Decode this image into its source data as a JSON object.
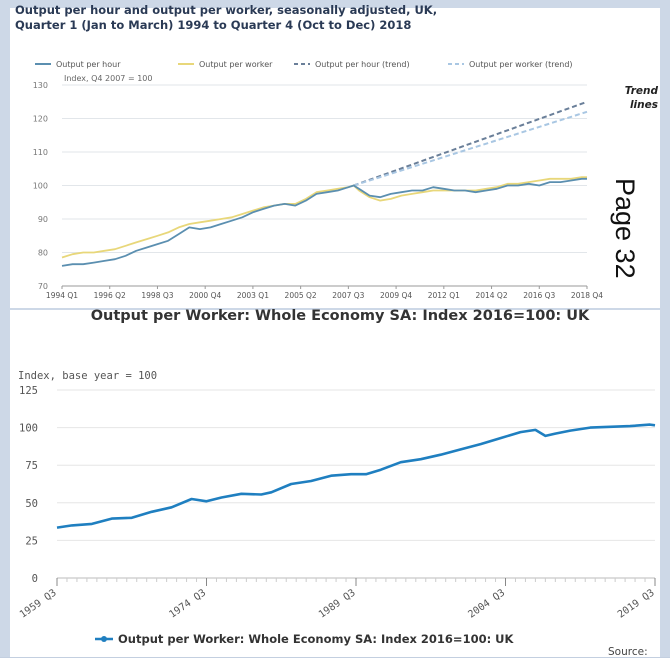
{
  "chart_data": [
    {
      "type": "line",
      "title": "Output per hour and output per worker, seasonally adjusted, UK, Quarter 1 (Jan to March) 1994 to Quarter 4 (Oct to Dec) 2018",
      "ylabel": "Index, Q4 2007 = 100",
      "ylim": [
        70,
        130
      ],
      "yticks": [
        70,
        80,
        90,
        100,
        110,
        120,
        130
      ],
      "xticks": [
        "1994 Q1",
        "1996 Q2",
        "1998 Q3",
        "2000 Q4",
        "2003 Q1",
        "2005 Q2",
        "2007 Q3",
        "2009 Q4",
        "2012 Q1",
        "2014 Q2",
        "2016 Q3",
        "2018 Q4"
      ],
      "grid": "horizontal",
      "legend": "top",
      "annotation": "Trend lines",
      "series": [
        {
          "name": "Output per hour",
          "color": "#5b8fb0",
          "style": "solid",
          "x": [
            1994.0,
            1994.5,
            1995.0,
            1995.5,
            1996.0,
            1996.5,
            1997.0,
            1997.5,
            1998.0,
            1998.5,
            1999.0,
            1999.5,
            2000.0,
            2000.5,
            2001.0,
            2001.5,
            2002.0,
            2002.5,
            2003.0,
            2003.5,
            2004.0,
            2004.5,
            2005.0,
            2005.5,
            2006.0,
            2006.5,
            2007.0,
            2007.5,
            2007.75,
            2008.0,
            2008.5,
            2009.0,
            2009.5,
            2010.0,
            2010.5,
            2011.0,
            2011.5,
            2012.0,
            2012.5,
            2013.0,
            2013.5,
            2014.0,
            2014.5,
            2015.0,
            2015.5,
            2016.0,
            2016.5,
            2017.0,
            2017.5,
            2018.0,
            2018.5,
            2018.75
          ],
          "values": [
            76,
            76.5,
            76.5,
            77,
            77.5,
            78,
            79,
            80.5,
            81.5,
            82.5,
            83.5,
            85.5,
            87.5,
            87,
            87.5,
            88.5,
            89.5,
            90.5,
            92,
            93,
            94,
            94.5,
            94,
            95.5,
            97.5,
            98,
            98.5,
            99.5,
            100,
            99,
            97,
            96.5,
            97.5,
            98,
            98.5,
            98.5,
            99.5,
            99,
            98.5,
            98.5,
            98,
            98.5,
            99,
            100,
            100,
            100.5,
            100,
            101,
            101,
            101.5,
            102,
            102
          ]
        },
        {
          "name": "Output per worker",
          "color": "#e8d77a",
          "style": "solid",
          "x": [
            1994.0,
            1994.5,
            1995.0,
            1995.5,
            1996.0,
            1996.5,
            1997.0,
            1997.5,
            1998.0,
            1998.5,
            1999.0,
            1999.5,
            2000.0,
            2000.5,
            2001.0,
            2001.5,
            2002.0,
            2002.5,
            2003.0,
            2003.5,
            2004.0,
            2004.5,
            2005.0,
            2005.5,
            2006.0,
            2006.5,
            2007.0,
            2007.5,
            2007.75,
            2008.0,
            2008.5,
            2009.0,
            2009.5,
            2010.0,
            2010.5,
            2011.0,
            2011.5,
            2012.0,
            2012.5,
            2013.0,
            2013.5,
            2014.0,
            2014.5,
            2015.0,
            2015.5,
            2016.0,
            2016.5,
            2017.0,
            2017.5,
            2018.0,
            2018.5,
            2018.75
          ],
          "values": [
            78.5,
            79.5,
            80,
            80,
            80.5,
            81,
            82,
            83,
            84,
            85,
            86,
            87.5,
            88.5,
            89,
            89.5,
            90,
            90.5,
            91.5,
            92.5,
            93.5,
            94,
            94.5,
            94.5,
            96,
            98,
            98.5,
            99,
            99.5,
            100,
            98.5,
            96.5,
            95.5,
            96,
            97,
            97.5,
            98,
            98.5,
            98.5,
            98.5,
            98.5,
            98.5,
            99,
            99.5,
            100.5,
            100.5,
            101,
            101.5,
            102,
            102,
            102,
            102.5,
            102.5
          ]
        },
        {
          "name": "Output per hour (trend)",
          "color": "#6a7f99",
          "style": "dashed",
          "x": [
            2007.75,
            2018.75
          ],
          "values": [
            100,
            125
          ]
        },
        {
          "name": "Output per worker (trend)",
          "color": "#a9c7e3",
          "style": "dashed",
          "x": [
            2007.75,
            2018.75
          ],
          "values": [
            100,
            122
          ]
        }
      ]
    },
    {
      "type": "line",
      "title": "Output per Worker: Whole Economy SA: Index 2016=100: UK",
      "ylabel": "Index, base year = 100",
      "ylim": [
        0,
        125
      ],
      "yticks": [
        0,
        25,
        50,
        75,
        100,
        125
      ],
      "xticks": [
        "1959 Q3",
        "1974 Q3",
        "1989 Q3",
        "2004 Q3",
        "2019 Q3"
      ],
      "grid": "horizontal",
      "legend": "bottom",
      "source_label": "Source:",
      "series": [
        {
          "name": "Output per Worker: Whole Economy SA: Index 2016=100: UK",
          "color": "#1f7fc0",
          "x": [
            1959.5,
            1961,
            1963,
            1965,
            1967,
            1969,
            1971,
            1973,
            1974.5,
            1976,
            1978,
            1980,
            1981,
            1983,
            1985,
            1987,
            1989,
            1990.5,
            1992,
            1994,
            1996,
            1998,
            2000,
            2002,
            2004,
            2006,
            2007.5,
            2008.5,
            2009.5,
            2011,
            2013,
            2015,
            2017,
            2019,
            2019.5
          ],
          "values": [
            33.5,
            35,
            36,
            39.5,
            40,
            44,
            47,
            52.5,
            51,
            53.5,
            56,
            55.5,
            57,
            62.5,
            64.5,
            68,
            69,
            69,
            72,
            77,
            79,
            82,
            85.5,
            89,
            93,
            97,
            98.5,
            94.5,
            96,
            98,
            100,
            100.5,
            101,
            102,
            101.5
          ]
        }
      ]
    }
  ],
  "decorations": {
    "page_label": "Page 32",
    "annotation_color": "#222222"
  }
}
